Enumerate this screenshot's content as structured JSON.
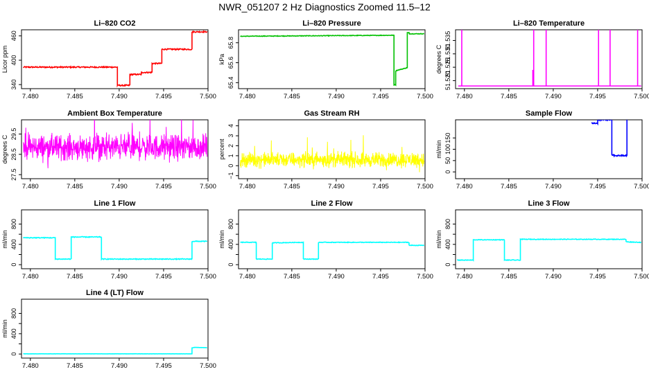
{
  "title": "NWR_051207  2 Hz Diagnostics Zoomed 11.5–12",
  "chart_data": [
    {
      "type": "line",
      "title": "Li–820 CO2",
      "ylabel": "Licor ppm",
      "color": "#ff0000",
      "xlim": [
        7.479,
        7.5
      ],
      "ylim": [
        330,
        475
      ],
      "xticks": [
        7.48,
        7.485,
        7.49,
        7.495,
        7.5
      ],
      "xtick_labels": [
        "7.480",
        "7.485",
        "7.490",
        "7.495",
        "7.500"
      ],
      "yticks": [
        340,
        400,
        460
      ],
      "ytick_labels": [
        "340",
        "400",
        "460"
      ],
      "noise": 1.5,
      "x": [
        7.4792,
        7.4898,
        7.4898,
        7.4912,
        7.4912,
        7.4925,
        7.4925,
        7.4937,
        7.4937,
        7.4948,
        7.4948,
        7.4982,
        7.4982,
        7.4999
      ],
      "y": [
        383,
        383,
        338,
        338,
        365,
        365,
        370,
        370,
        392,
        392,
        427,
        427,
        470,
        470
      ]
    },
    {
      "type": "line",
      "title": "Li–820 Pressure",
      "ylabel": "kPa",
      "color": "#00c000",
      "xlim": [
        7.479,
        7.5
      ],
      "ylim": [
        65.34,
        65.93
      ],
      "xticks": [
        7.48,
        7.485,
        7.49,
        7.495,
        7.5
      ],
      "xtick_labels": [
        "7.480",
        "7.485",
        "7.490",
        "7.495",
        "7.500"
      ],
      "yticks": [
        65.4,
        65.6,
        65.8
      ],
      "ytick_labels": [
        "65.4",
        "65.6",
        "65.8"
      ],
      "noise": 0.003,
      "x": [
        7.4792,
        7.4965,
        7.4965,
        7.4967,
        7.4967,
        7.498,
        7.498,
        7.4982,
        7.4982,
        7.4999
      ],
      "y": [
        65.865,
        65.875,
        65.38,
        65.38,
        65.52,
        65.55,
        65.9,
        65.9,
        65.89,
        65.89
      ]
    },
    {
      "type": "spikes",
      "title": "Li–820 Temperature",
      "ylabel": "degrees C",
      "color": "#ff00ff",
      "xlim": [
        7.479,
        7.5
      ],
      "ylim": [
        51.517,
        51.539
      ],
      "xticks": [
        7.48,
        7.485,
        7.49,
        7.495,
        7.5
      ],
      "xtick_labels": [
        "7.480",
        "7.485",
        "7.490",
        "7.495",
        "7.500"
      ],
      "yticks": [
        51.52,
        51.525,
        51.53,
        51.535
      ],
      "ytick_labels": [
        "51.520",
        "51.525",
        "51.530",
        "51.535"
      ],
      "baseline": 51.518,
      "peak": 51.539,
      "spikes": [
        7.4797,
        7.4878,
        7.4892,
        7.4951,
        7.4964,
        7.4995
      ],
      "extra_x": [
        7.4877
      ],
      "extra_y": [
        51.524
      ]
    },
    {
      "type": "noise",
      "title": "Ambient Box Temperature",
      "ylabel": "degrees C",
      "color": "#ff00ff",
      "xlim": [
        7.479,
        7.5
      ],
      "ylim": [
        27.3,
        30.2
      ],
      "xticks": [
        7.48,
        7.485,
        7.49,
        7.495,
        7.5
      ],
      "xtick_labels": [
        "7.480",
        "7.485",
        "7.490",
        "7.495",
        "7.500"
      ],
      "yticks": [
        27.5,
        28.5,
        29.5
      ],
      "ytick_labels": [
        "27.5",
        "28.5",
        "29.5"
      ],
      "mean": 28.85,
      "spread": 0.5,
      "x_range": [
        7.4792,
        7.4999
      ]
    },
    {
      "type": "noise",
      "title": "Gas Stream RH",
      "ylabel": "percent",
      "color": "#ffff00",
      "xlim": [
        7.479,
        7.5
      ],
      "ylim": [
        -1.3,
        4.6
      ],
      "xticks": [
        7.48,
        7.485,
        7.49,
        7.495,
        7.5
      ],
      "xtick_labels": [
        "7.480",
        "7.485",
        "7.490",
        "7.495",
        "7.500"
      ],
      "yticks": [
        -1,
        0,
        1,
        2,
        3,
        4
      ],
      "ytick_labels": [
        "−1",
        "0",
        "1",
        "2",
        "3",
        "4"
      ],
      "mean": 0.6,
      "spread": 0.6,
      "x_range": [
        7.4792,
        7.4999
      ]
    },
    {
      "type": "line",
      "title": "Sample Flow",
      "ylabel": "ml/min",
      "color": "#0000ff",
      "xlim": [
        7.479,
        7.5
      ],
      "ylim": [
        -30,
        230
      ],
      "xticks": [
        7.48,
        7.485,
        7.49,
        7.495,
        7.5
      ],
      "xtick_labels": [
        "7.480",
        "7.485",
        "7.490",
        "7.495",
        "7.500"
      ],
      "yticks": [
        0,
        50,
        100,
        150
      ],
      "ytick_labels": [
        "0",
        "50",
        "100",
        "150"
      ],
      "noise": 3,
      "x": [
        7.4943,
        7.495,
        7.495,
        7.4966,
        7.4966,
        7.4968,
        7.4968,
        7.4983,
        7.4983
      ],
      "y": [
        215,
        215,
        230,
        230,
        75,
        75,
        72,
        72,
        230
      ]
    },
    {
      "type": "line",
      "title": "Line 1 Flow",
      "ylabel": "ml/min",
      "color": "#00ffff",
      "xlim": [
        7.479,
        7.5
      ],
      "ylim": [
        -80,
        1080
      ],
      "xticks": [
        7.48,
        7.485,
        7.49,
        7.495,
        7.5
      ],
      "xtick_labels": [
        "7.480",
        "7.485",
        "7.490",
        "7.495",
        "7.500"
      ],
      "yticks": [
        0,
        200,
        400,
        600,
        800
      ],
      "ytick_labels": [
        "0",
        "400",
        "800"
      ],
      "ytick_label_values": [
        0,
        400,
        800
      ],
      "noise": 8,
      "x": [
        7.4792,
        7.4828,
        7.4828,
        7.4846,
        7.4846,
        7.488,
        7.488,
        7.4982,
        7.4982,
        7.4999
      ],
      "y": [
        530,
        530,
        110,
        110,
        545,
        545,
        110,
        110,
        460,
        460
      ]
    },
    {
      "type": "line",
      "title": "Line 2 Flow",
      "ylabel": "ml/min",
      "color": "#00ffff",
      "xlim": [
        7.479,
        7.5
      ],
      "ylim": [
        -80,
        1080
      ],
      "xticks": [
        7.48,
        7.485,
        7.49,
        7.495,
        7.5
      ],
      "xtick_labels": [
        "7.480",
        "7.485",
        "7.490",
        "7.495",
        "7.500"
      ],
      "yticks": [
        0,
        200,
        400,
        600,
        800
      ],
      "ytick_labels": [
        "0",
        "400",
        "800"
      ],
      "ytick_label_values": [
        0,
        400,
        800
      ],
      "noise": 6,
      "x": [
        7.4792,
        7.481,
        7.481,
        7.4828,
        7.4828,
        7.4863,
        7.4863,
        7.488,
        7.488,
        7.4982,
        7.4982,
        7.4999
      ],
      "y": [
        440,
        440,
        110,
        110,
        430,
        440,
        110,
        110,
        440,
        440,
        380,
        380
      ]
    },
    {
      "type": "line",
      "title": "Line 3 Flow",
      "ylabel": "ml/min",
      "color": "#00ffff",
      "xlim": [
        7.479,
        7.5
      ],
      "ylim": [
        -80,
        1080
      ],
      "xticks": [
        7.48,
        7.485,
        7.49,
        7.495,
        7.5
      ],
      "xtick_labels": [
        "7.480",
        "7.485",
        "7.490",
        "7.495",
        "7.500"
      ],
      "yticks": [
        0,
        200,
        400,
        600,
        800
      ],
      "ytick_labels": [
        "0",
        "400",
        "800"
      ],
      "ytick_label_values": [
        0,
        400,
        800
      ],
      "noise": 6,
      "x": [
        7.4792,
        7.481,
        7.481,
        7.4845,
        7.4845,
        7.4863,
        7.4863,
        7.4982,
        7.4982,
        7.4999
      ],
      "y": [
        90,
        90,
        490,
        490,
        90,
        90,
        500,
        500,
        450,
        440
      ]
    },
    {
      "type": "line",
      "title": "Line 4 (LT) Flow",
      "ylabel": "ml/min",
      "color": "#00ffff",
      "xlim": [
        7.479,
        7.5
      ],
      "ylim": [
        -80,
        1080
      ],
      "xticks": [
        7.48,
        7.485,
        7.49,
        7.495,
        7.5
      ],
      "xtick_labels": [
        "7.480",
        "7.485",
        "7.490",
        "7.495",
        "7.500"
      ],
      "yticks": [
        0,
        200,
        400,
        600,
        800
      ],
      "ytick_labels": [
        "0",
        "400",
        "800"
      ],
      "ytick_label_values": [
        0,
        400,
        800
      ],
      "noise": 1.5,
      "x": [
        7.4792,
        7.4982,
        7.4982,
        7.4985,
        7.4999
      ],
      "y": [
        4,
        4,
        120,
        130,
        125
      ]
    }
  ]
}
